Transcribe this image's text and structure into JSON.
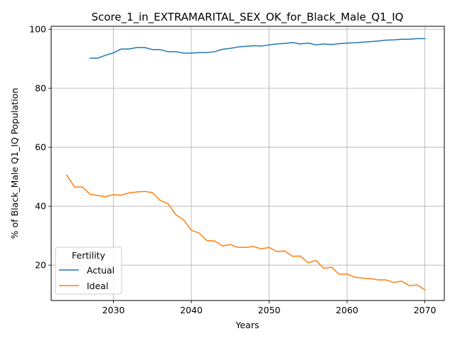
{
  "chart_data": {
    "type": "line",
    "title": "Score_1_in_EXTRAMARITAL_SEX_OK_for_Black_Male_Q1_IQ",
    "xlabel": "Years",
    "ylabel": "% of Black_Male Q1_IQ Population",
    "xlim": [
      2022,
      2072.5
    ],
    "ylim": [
      8,
      101
    ],
    "x_ticks": [
      2030,
      2040,
      2050,
      2060,
      2070
    ],
    "y_ticks": [
      20,
      40,
      60,
      80,
      100
    ],
    "grid": true,
    "legend": {
      "title": "Fertility",
      "placement": "lower-left"
    },
    "series": [
      {
        "name": "Actual",
        "color": "#1f77b4",
        "x": [
          2027,
          2028,
          2029,
          2030,
          2031,
          2032,
          2033,
          2034,
          2035,
          2036,
          2037,
          2038,
          2039,
          2040,
          2041,
          2042,
          2043,
          2044,
          2045,
          2046,
          2047,
          2048,
          2049,
          2050,
          2051,
          2052,
          2053,
          2054,
          2055,
          2056,
          2057,
          2058,
          2059,
          2060,
          2061,
          2062,
          2063,
          2064,
          2065,
          2066,
          2067,
          2068,
          2069,
          2070
        ],
        "values": [
          90.2,
          90.2,
          91.2,
          92.0,
          93.3,
          93.3,
          93.8,
          93.8,
          93.1,
          93.1,
          92.4,
          92.4,
          91.9,
          91.9,
          92.1,
          92.1,
          92.4,
          93.2,
          93.5,
          94.0,
          94.2,
          94.4,
          94.3,
          94.7,
          95.0,
          95.2,
          95.5,
          95.0,
          95.3,
          94.7,
          95.0,
          94.8,
          95.1,
          95.3,
          95.4,
          95.6,
          95.8,
          96.0,
          96.3,
          96.4,
          96.6,
          96.6,
          96.8,
          96.8
        ]
      },
      {
        "name": "Ideal",
        "color": "#ff7f0e",
        "x": [
          2024,
          2025,
          2026,
          2027,
          2028,
          2029,
          2030,
          2031,
          2032,
          2033,
          2034,
          2035,
          2036,
          2037,
          2038,
          2039,
          2040,
          2041,
          2042,
          2043,
          2044,
          2045,
          2046,
          2047,
          2048,
          2049,
          2050,
          2051,
          2052,
          2053,
          2054,
          2055,
          2056,
          2057,
          2058,
          2059,
          2060,
          2061,
          2062,
          2063,
          2064,
          2065,
          2066,
          2067,
          2068,
          2069,
          2070
        ],
        "values": [
          50.5,
          46.5,
          46.5,
          44.0,
          43.6,
          43.2,
          43.9,
          43.7,
          44.5,
          44.8,
          45.0,
          44.6,
          41.9,
          40.9,
          37.1,
          35.4,
          31.8,
          30.9,
          28.3,
          28.2,
          26.5,
          27.0,
          26.0,
          26.0,
          26.3,
          25.5,
          26.0,
          24.6,
          24.8,
          23.0,
          23.1,
          20.8,
          21.6,
          18.9,
          19.3,
          16.9,
          17.0,
          15.9,
          15.6,
          15.4,
          15.0,
          15.0,
          14.1,
          14.6,
          13.0,
          13.3,
          11.6
        ]
      }
    ]
  }
}
